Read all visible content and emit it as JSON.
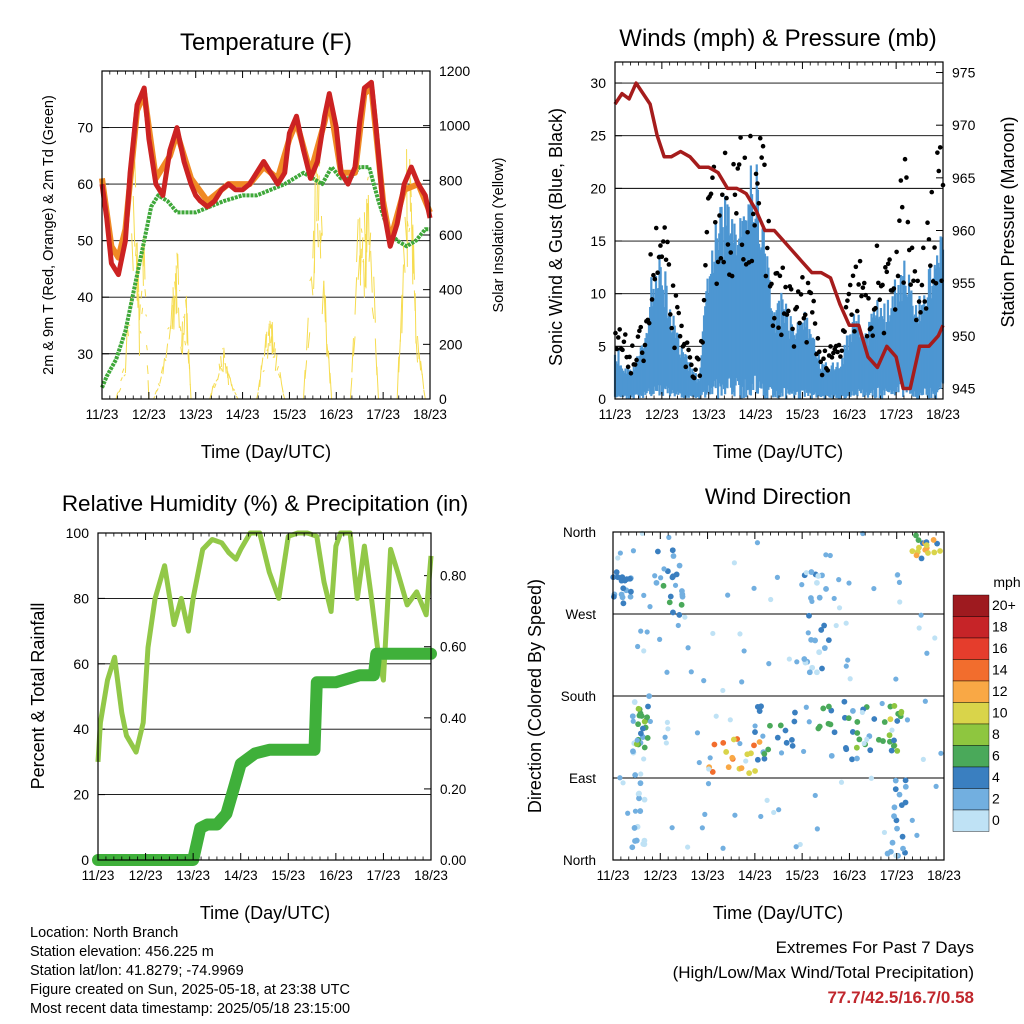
{
  "panels": {
    "temperature": {
      "title": "Temperature (F)",
      "xlabel": "Time (Day/UTC)",
      "ylabel_left": "2m & 9m T (Red, Orange) & 2m Td (Green)",
      "ylabel_right": "Solar Insolation (Yellow)",
      "left_ticks": [
        "30",
        "40",
        "50",
        "60",
        "70"
      ],
      "right_ticks": [
        "0",
        "200",
        "400",
        "600",
        "800",
        "1000",
        "1200"
      ]
    },
    "winds": {
      "title": "Winds (mph) & Pressure (mb)",
      "xlabel": "Time (Day/UTC)",
      "ylabel_left": "Sonic Wind & Gust (Blue, Black)",
      "ylabel_right": "Station Pressure (Maroon)",
      "left_ticks": [
        "0",
        "5",
        "10",
        "15",
        "20",
        "25",
        "30"
      ],
      "right_ticks": [
        "945",
        "950",
        "955",
        "960",
        "965",
        "970",
        "975"
      ]
    },
    "humidity": {
      "title": "Relative Humidity (%) & Precipitation (in)",
      "xlabel": "Time (Day/UTC)",
      "ylabel_left": "Percent & Total Rainfall",
      "left_ticks": [
        "0",
        "20",
        "40",
        "60",
        "80",
        "100"
      ],
      "right_ticks": [
        "0.00",
        "0.20",
        "0.40",
        "0.60",
        "0.80"
      ]
    },
    "direction": {
      "title": "Wind Direction",
      "xlabel": "Time (Day/UTC)",
      "ylabel_left": "Direction (Colored By Speed)",
      "dir_ticks": [
        "North",
        "West",
        "South",
        "East",
        "North"
      ],
      "legend_title": "mph",
      "legend_labels": [
        "20+",
        "18",
        "16",
        "14",
        "12",
        "10",
        "8",
        "6",
        "4",
        "2",
        "0"
      ],
      "legend_colors": [
        "#9e1a1f",
        "#c62428",
        "#e53d2c",
        "#f26d2d",
        "#f9a845",
        "#d9d44a",
        "#8ec63f",
        "#4aa95a",
        "#3a7fc0",
        "#72afe0",
        "#bfe2f5"
      ]
    }
  },
  "x_ticks": [
    "11/23",
    "12/23",
    "13/23",
    "14/23",
    "15/23",
    "16/23",
    "17/23",
    "18/23"
  ],
  "colors": {
    "temp_2m": "#cc2222",
    "temp_9m": "#f08a24",
    "dewpoint": "#3fa83a",
    "solar": "#f6dc4f",
    "wind": "#4d96d2",
    "gust": "#000000",
    "pressure": "#a51c1c",
    "rh": "#92c848",
    "precip": "#3fb03a"
  },
  "info": {
    "location": "Location: North Branch",
    "elevation": "Station elevation: 456.225 m",
    "latlon": "Station lat/lon: 41.8279; -74.9969",
    "created": "Figure created on Sun, 2025-05-18, at 23:38 UTC",
    "recent": "Most recent data timestamp: 2025/05/18 23:15:00",
    "extremes_title": "Extremes For Past 7 Days",
    "extremes_sub": "(High/Low/Max Wind/Total Precipitation)",
    "extremes_values": "77.7/42.5/16.7/0.58"
  },
  "chart_data": [
    {
      "type": "line",
      "title": "Temperature (F)",
      "xlabel": "Time (Day/UTC)",
      "ylabel": "2m & 9m T (Red, Orange) & 2m Td (Green)",
      "ylabel_right": "Solar Insolation (Yellow)",
      "x_unit": "day",
      "xlim": [
        11,
        18
      ],
      "ylim": [
        22,
        80
      ],
      "ylim_right": [
        0,
        1200
      ],
      "series": [
        {
          "name": "2m T",
          "axis": "left",
          "x": [
            11,
            11.1,
            11.2,
            11.35,
            11.5,
            11.6,
            11.75,
            11.9,
            12.0,
            12.15,
            12.3,
            12.45,
            12.6,
            12.75,
            12.9,
            13.0,
            13.1,
            13.25,
            13.4,
            13.55,
            13.7,
            13.85,
            14.0,
            14.15,
            14.3,
            14.45,
            14.6,
            14.75,
            14.9,
            15.0,
            15.15,
            15.3,
            15.45,
            15.6,
            15.75,
            15.85,
            16.0,
            16.1,
            16.25,
            16.4,
            16.5,
            16.6,
            16.75,
            16.85,
            17.0,
            17.15,
            17.3,
            17.45,
            17.6,
            17.75,
            17.9,
            18.0
          ],
          "values": [
            60,
            54,
            46,
            44,
            50,
            62,
            74,
            77,
            68,
            60,
            58,
            66,
            70,
            64,
            60,
            58,
            57,
            56,
            57,
            59,
            60,
            59,
            59,
            60,
            62,
            64,
            62,
            60,
            62,
            69,
            72,
            66,
            61,
            64,
            72,
            76,
            70,
            62,
            60,
            63,
            71,
            77,
            78,
            70,
            56,
            49,
            53,
            60,
            63,
            60,
            58,
            54
          ]
        },
        {
          "name": "9m T",
          "axis": "left",
          "x": [
            11,
            11.2,
            11.35,
            11.5,
            11.75,
            11.9,
            12.15,
            12.45,
            12.6,
            12.9,
            13.25,
            13.7,
            14.15,
            14.45,
            14.75,
            15.0,
            15.15,
            15.45,
            15.75,
            15.85,
            16.1,
            16.4,
            16.6,
            16.75,
            17.0,
            17.15,
            17.45,
            17.75,
            18.0
          ],
          "values": [
            61,
            49,
            47,
            52,
            73,
            76,
            61,
            65,
            69,
            61,
            57,
            60,
            60,
            63,
            61,
            68,
            71,
            62,
            71,
            75,
            62,
            62,
            76,
            77,
            57,
            50,
            59,
            60,
            55
          ]
        },
        {
          "name": "2m Td",
          "axis": "left",
          "x": [
            11,
            11.1,
            11.3,
            11.5,
            11.7,
            11.9,
            12.05,
            12.2,
            12.4,
            12.6,
            12.8,
            13.0,
            13.3,
            13.6,
            14.0,
            14.3,
            14.6,
            14.9,
            15.1,
            15.3,
            15.5,
            15.7,
            15.9,
            16.1,
            16.3,
            16.5,
            16.7,
            16.9,
            17.1,
            17.3,
            17.5,
            17.7,
            17.9,
            18.0
          ],
          "values": [
            24,
            26,
            29,
            34,
            42,
            50,
            56,
            58,
            57,
            55,
            55,
            55,
            56,
            57,
            58,
            58,
            59,
            60,
            61,
            62,
            61,
            60,
            63,
            61,
            61,
            63,
            63,
            57,
            52,
            50,
            49,
            50,
            52,
            52
          ]
        },
        {
          "name": "Solar Insolation",
          "axis": "right",
          "x": [
            11.3,
            11.5,
            11.7,
            11.8,
            11.9,
            12.0,
            12.1,
            12.3,
            12.5,
            12.6,
            12.7,
            12.8,
            12.9,
            13.3,
            13.5,
            13.6,
            13.7,
            13.9,
            14.3,
            14.5,
            14.6,
            14.7,
            14.9,
            15.3,
            15.5,
            15.6,
            15.7,
            15.9,
            16.3,
            16.5,
            16.6,
            16.7,
            16.9,
            17.3,
            17.5,
            17.6,
            17.7,
            17.9
          ],
          "values": [
            0,
            150,
            900,
            300,
            700,
            0,
            0,
            120,
            450,
            600,
            300,
            400,
            0,
            0,
            150,
            200,
            100,
            0,
            0,
            250,
            350,
            200,
            0,
            0,
            700,
            1150,
            600,
            0,
            0,
            800,
            700,
            900,
            0,
            0,
            950,
            850,
            300,
            0
          ]
        }
      ]
    },
    {
      "type": "line",
      "title": "Winds (mph) & Pressure (mb)",
      "xlabel": "Time (Day/UTC)",
      "ylabel": "Sonic Wind & Gust (Blue, Black)",
      "ylabel_right": "Station Pressure (Maroon)",
      "x_unit": "day",
      "xlim": [
        11,
        18
      ],
      "ylim": [
        0,
        32
      ],
      "ylim_right": [
        944,
        976
      ],
      "series": [
        {
          "name": "Sonic Wind",
          "axis": "left",
          "x": [
            11,
            11.2,
            11.4,
            11.6,
            11.8,
            12.0,
            12.2,
            12.4,
            12.6,
            12.8,
            13.0,
            13.2,
            13.4,
            13.6,
            13.8,
            14.0,
            14.2,
            14.4,
            14.6,
            14.8,
            15.0,
            15.2,
            15.4,
            15.6,
            15.8,
            16.0,
            16.2,
            16.4,
            16.6,
            16.8,
            17.0,
            17.2,
            17.4,
            17.6,
            17.8,
            18.0
          ],
          "values": [
            3,
            2,
            2,
            3,
            7,
            8,
            5,
            3,
            2,
            1,
            8,
            10,
            11,
            11,
            12,
            13,
            9,
            5,
            6,
            4,
            5,
            4,
            2,
            2,
            2,
            4,
            5,
            4,
            6,
            5,
            7,
            8,
            5,
            6,
            8,
            9
          ]
        },
        {
          "name": "Gust",
          "axis": "left",
          "x": [
            11,
            11.2,
            11.4,
            11.6,
            11.8,
            12.0,
            12.2,
            12.4,
            12.6,
            12.8,
            13.0,
            13.2,
            13.4,
            13.6,
            13.8,
            14.0,
            14.2,
            14.4,
            14.6,
            14.8,
            15.0,
            15.2,
            15.4,
            15.6,
            15.8,
            16.0,
            16.2,
            16.4,
            16.6,
            16.8,
            17.0,
            17.2,
            17.4,
            17.6,
            17.8,
            18.0
          ],
          "values": [
            6,
            5,
            4,
            6,
            13,
            15,
            10,
            6,
            4,
            3,
            16,
            20,
            20,
            19,
            22,
            25,
            18,
            10,
            11,
            8,
            10,
            9,
            4,
            4,
            5,
            9,
            12,
            8,
            12,
            10,
            15,
            20,
            10,
            12,
            18,
            20
          ]
        },
        {
          "name": "Station Pressure",
          "axis": "right",
          "x": [
            11,
            11.15,
            11.3,
            11.45,
            11.6,
            11.75,
            11.9,
            12.05,
            12.2,
            12.4,
            12.6,
            12.8,
            13.0,
            13.2,
            13.4,
            13.6,
            13.8,
            14.0,
            14.2,
            14.4,
            14.6,
            14.8,
            15.0,
            15.2,
            15.4,
            15.6,
            15.8,
            16.0,
            16.2,
            16.4,
            16.6,
            16.8,
            17.0,
            17.15,
            17.3,
            17.5,
            17.7,
            17.9,
            18.0
          ],
          "values": [
            972,
            973,
            972.5,
            974,
            973,
            972,
            969,
            967,
            967,
            967.5,
            967,
            966,
            966,
            965.5,
            964,
            964,
            963.5,
            962,
            960,
            960,
            959,
            958,
            957,
            956,
            956,
            955.5,
            953,
            951,
            951,
            948,
            947,
            949,
            948,
            945,
            945,
            949,
            949,
            950,
            951
          ]
        }
      ]
    },
    {
      "type": "line",
      "title": "Relative Humidity (%) & Precipitation (in)",
      "xlabel": "Time (Day/UTC)",
      "ylabel": "Percent & Total Rainfall",
      "x_unit": "day",
      "xlim": [
        11,
        18
      ],
      "ylim": [
        0,
        100
      ],
      "ylim_right": [
        0,
        0.92
      ],
      "series": [
        {
          "name": "Relative Humidity",
          "axis": "left",
          "x": [
            11,
            11.05,
            11.2,
            11.35,
            11.5,
            11.6,
            11.8,
            11.95,
            12.05,
            12.2,
            12.4,
            12.6,
            12.75,
            12.9,
            13.0,
            13.2,
            13.4,
            13.6,
            13.75,
            13.9,
            14.0,
            14.2,
            14.4,
            14.6,
            14.8,
            15.0,
            15.2,
            15.4,
            15.6,
            15.75,
            15.9,
            16.0,
            16.1,
            16.3,
            16.45,
            16.6,
            16.75,
            16.9,
            17.0,
            17.15,
            17.3,
            17.5,
            17.7,
            17.9,
            18.0
          ],
          "values": [
            30,
            42,
            55,
            62,
            45,
            38,
            33,
            42,
            65,
            80,
            90,
            72,
            80,
            70,
            80,
            95,
            98,
            97,
            94,
            92,
            95,
            100,
            100,
            88,
            80,
            99,
            100,
            100,
            99,
            85,
            76,
            96,
            100,
            100,
            80,
            96,
            80,
            62,
            55,
            95,
            88,
            78,
            82,
            75,
            93
          ]
        },
        {
          "name": "Total Precipitation",
          "axis": "right",
          "x": [
            11,
            12,
            13,
            13.05,
            13.15,
            13.3,
            13.5,
            13.7,
            13.85,
            14.0,
            14.3,
            14.6,
            15.0,
            15.55,
            15.6,
            16.0,
            16.5,
            16.8,
            16.85,
            17.0,
            17.5,
            18.0
          ],
          "values": [
            0,
            0,
            0,
            0.03,
            0.09,
            0.1,
            0.1,
            0.13,
            0.2,
            0.27,
            0.3,
            0.31,
            0.31,
            0.31,
            0.5,
            0.5,
            0.52,
            0.52,
            0.58,
            0.58,
            0.58,
            0.58
          ]
        }
      ]
    },
    {
      "type": "scatter",
      "title": "Wind Direction",
      "xlabel": "Time (Day/UTC)",
      "ylabel": "Direction (Colored By Speed)",
      "x_unit": "day",
      "xlim": [
        11,
        18
      ],
      "y_categories": [
        "North",
        "West",
        "South",
        "East",
        "North"
      ],
      "colorbar_unit": "mph",
      "clusters": [
        {
          "x": [
            11.0,
            11.4
          ],
          "direction_deg": [
            280,
            320
          ],
          "speed_mph": [
            2,
            5
          ]
        },
        {
          "x": [
            11.4,
            11.8
          ],
          "direction_deg": [
            10,
            180
          ],
          "speed_mph": [
            0,
            2
          ]
        },
        {
          "x": [
            11.5,
            11.75
          ],
          "direction_deg": [
            120,
            170
          ],
          "speed_mph": [
            4,
            8
          ]
        },
        {
          "x": [
            11.9,
            12.5
          ],
          "direction_deg": [
            260,
            340
          ],
          "speed_mph": [
            2,
            6
          ]
        },
        {
          "x": [
            12.9,
            14.1
          ],
          "direction_deg": [
            95,
            135
          ],
          "speed_mph": [
            9,
            15
          ]
        },
        {
          "x": [
            14.0,
            14.9
          ],
          "direction_deg": [
            110,
            170
          ],
          "speed_mph": [
            2,
            6
          ]
        },
        {
          "x": [
            15.0,
            15.6
          ],
          "direction_deg": [
            200,
            320
          ],
          "speed_mph": [
            0,
            4
          ]
        },
        {
          "x": [
            15.3,
            16.6
          ],
          "direction_deg": [
            110,
            175
          ],
          "speed_mph": [
            2,
            8
          ]
        },
        {
          "x": [
            16.6,
            17.1
          ],
          "direction_deg": [
            110,
            170
          ],
          "speed_mph": [
            4,
            10
          ]
        },
        {
          "x": [
            16.8,
            17.2
          ],
          "direction_deg": [
            0,
            90
          ],
          "speed_mph": [
            1,
            4
          ]
        },
        {
          "x": [
            17.3,
            18.0
          ],
          "direction_deg": [
            330,
            360
          ],
          "speed_mph": [
            4,
            12
          ]
        }
      ]
    }
  ]
}
